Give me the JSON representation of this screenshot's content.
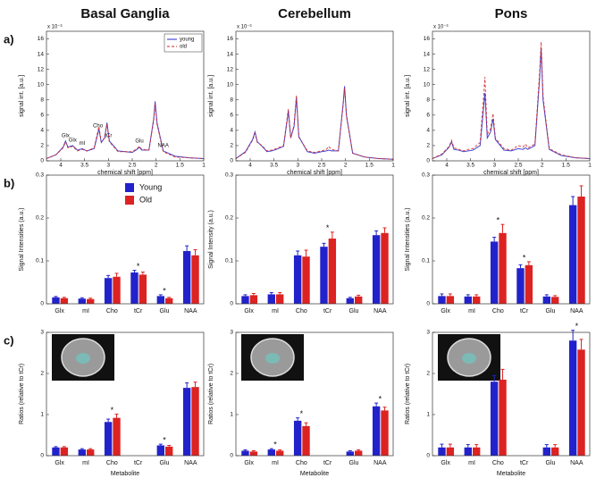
{
  "chart_data": [
    {
      "type": "line",
      "title": "Basal Ganglia",
      "panel_label": "a)",
      "xlabel": "chemical shift [ppm]",
      "ylabel": "signal int. [a.u.]",
      "exponent_label": "x 10⁻³",
      "x": [
        4.3,
        4.1,
        3.95,
        3.9,
        3.85,
        3.75,
        3.65,
        3.55,
        3.45,
        3.3,
        3.22,
        3.2,
        3.15,
        3.08,
        3.03,
        2.98,
        2.8,
        2.65,
        2.5,
        2.4,
        2.35,
        2.3,
        2.15,
        2.05,
        2.02,
        1.98,
        1.85,
        1.6,
        1.3,
        1.0
      ],
      "series": [
        {
          "name": "young",
          "color": "#2424c8",
          "dash": false,
          "values": [
            0.3,
            0.8,
            1.8,
            2.6,
            1.8,
            2.0,
            1.4,
            1.6,
            1.3,
            1.6,
            3.6,
            4.2,
            2.4,
            3.0,
            5.0,
            2.6,
            1.3,
            1.2,
            1.1,
            1.5,
            1.8,
            1.4,
            1.4,
            5.5,
            7.8,
            5.0,
            1.3,
            0.6,
            0.4,
            0.3
          ]
        },
        {
          "name": "old",
          "color": "#d42424",
          "dash": true,
          "values": [
            0.3,
            0.8,
            1.7,
            2.5,
            1.7,
            1.9,
            1.3,
            1.5,
            1.3,
            1.7,
            3.9,
            4.5,
            2.5,
            3.0,
            4.8,
            2.5,
            1.2,
            1.2,
            1.2,
            1.6,
            1.9,
            1.5,
            1.4,
            5.3,
            7.5,
            4.8,
            1.2,
            0.5,
            0.4,
            0.3
          ]
        }
      ],
      "xlim": [
        4.3,
        1
      ],
      "xticks": [
        4,
        3.5,
        3,
        2.5,
        2,
        1.5,
        1
      ],
      "ylim": [
        0,
        17
      ],
      "yticks": [
        0,
        2,
        4,
        6,
        8,
        10,
        12,
        14,
        16
      ],
      "legend": "upper right",
      "annotations": [
        {
          "text": "Glx",
          "x": 3.9
        },
        {
          "text": "Glx",
          "x": 3.75
        },
        {
          "text": "mI",
          "x": 3.55
        },
        {
          "text": "Cho",
          "x": 3.22
        },
        {
          "text": "tCr",
          "x": 3.0
        },
        {
          "text": "Glu",
          "x": 2.35
        },
        {
          "text": "NAA",
          "x": 1.85
        }
      ]
    },
    {
      "type": "line",
      "title": "Cerebellum",
      "xlabel": "chemical shift [ppm]",
      "ylabel": "signal int. [a.u.]",
      "exponent_label": "x 10⁻³",
      "x": [
        4.3,
        4.1,
        3.95,
        3.9,
        3.85,
        3.75,
        3.65,
        3.55,
        3.45,
        3.3,
        3.22,
        3.2,
        3.15,
        3.08,
        3.03,
        2.98,
        2.8,
        2.65,
        2.5,
        2.4,
        2.35,
        2.3,
        2.15,
        2.05,
        2.02,
        1.98,
        1.85,
        1.6,
        1.3,
        1.0
      ],
      "series": [
        {
          "name": "young",
          "color": "#2424c8",
          "dash": false,
          "values": [
            0.3,
            1.2,
            2.8,
            3.8,
            2.5,
            1.9,
            1.2,
            1.3,
            1.5,
            1.9,
            5.5,
            6.6,
            3.0,
            4.5,
            8.3,
            3.2,
            1.2,
            1.0,
            1.2,
            1.3,
            1.4,
            1.3,
            1.3,
            7.5,
            9.8,
            6.0,
            1.0,
            0.5,
            0.3,
            0.2
          ]
        },
        {
          "name": "old",
          "color": "#d42424",
          "dash": true,
          "values": [
            0.3,
            1.1,
            2.7,
            3.6,
            2.4,
            2.0,
            1.3,
            1.4,
            1.6,
            2.0,
            5.8,
            6.8,
            3.0,
            4.7,
            8.6,
            3.1,
            1.3,
            1.1,
            1.3,
            1.5,
            1.9,
            1.5,
            1.3,
            7.3,
            9.5,
            5.8,
            1.0,
            0.5,
            0.3,
            0.2
          ]
        }
      ],
      "xlim": [
        4.3,
        1
      ],
      "xticks": [
        4,
        3.5,
        3,
        2.5,
        2,
        1.5,
        1
      ],
      "ylim": [
        0,
        17
      ],
      "yticks": [
        0,
        2,
        4,
        6,
        8,
        10,
        12,
        14,
        16
      ]
    },
    {
      "type": "line",
      "title": "Pons",
      "xlabel": "chemical shift [ppm]",
      "ylabel": "signal int. [a.u.]",
      "exponent_label": "x 10⁻³",
      "x": [
        4.3,
        4.1,
        3.95,
        3.9,
        3.85,
        3.75,
        3.65,
        3.55,
        3.45,
        3.3,
        3.22,
        3.2,
        3.15,
        3.08,
        3.03,
        2.98,
        2.8,
        2.65,
        2.5,
        2.4,
        2.35,
        2.3,
        2.15,
        2.05,
        2.02,
        1.98,
        1.85,
        1.6,
        1.3,
        1.0
      ],
      "series": [
        {
          "name": "young",
          "color": "#2424c8",
          "dash": false,
          "values": [
            0.3,
            0.8,
            1.8,
            2.5,
            1.5,
            1.4,
            1.2,
            1.3,
            1.4,
            2.0,
            7.5,
            8.9,
            3.0,
            3.8,
            5.5,
            2.8,
            1.4,
            1.3,
            1.6,
            1.5,
            1.7,
            1.5,
            2.0,
            11.0,
            14.8,
            8.0,
            1.5,
            0.7,
            0.4,
            0.3
          ]
        },
        {
          "name": "old",
          "color": "#d42424",
          "dash": true,
          "values": [
            0.3,
            0.9,
            1.9,
            2.7,
            1.7,
            1.5,
            1.3,
            1.5,
            1.6,
            2.4,
            9.0,
            11.0,
            3.5,
            4.2,
            6.2,
            3.0,
            1.6,
            1.4,
            2.0,
            1.8,
            2.2,
            1.7,
            2.2,
            11.8,
            15.6,
            8.5,
            1.6,
            0.8,
            0.4,
            0.3
          ]
        }
      ],
      "xlim": [
        4.3,
        1
      ],
      "xticks": [
        4,
        3.5,
        3,
        2.5,
        2,
        1.5,
        1
      ],
      "ylim": [
        0,
        17
      ],
      "yticks": [
        0,
        2,
        4,
        6,
        8,
        10,
        12,
        14,
        16
      ]
    },
    {
      "type": "bar",
      "panel_label": "b)",
      "ylabel": "Signal Intensities (a.u.)",
      "categories": [
        "Glx",
        "mI",
        "Cho",
        "tCr",
        "Glu",
        "NAA"
      ],
      "series": [
        {
          "name": "Young",
          "color": "#2222cc",
          "values": [
            0.015,
            0.012,
            0.06,
            0.073,
            0.018,
            0.123
          ],
          "errors": [
            0.002,
            0.002,
            0.006,
            0.005,
            0.003,
            0.012
          ]
        },
        {
          "name": "Old",
          "color": "#dd2222",
          "values": [
            0.013,
            0.011,
            0.063,
            0.068,
            0.013,
            0.113
          ],
          "errors": [
            0.002,
            0.002,
            0.008,
            0.006,
            0.002,
            0.013
          ]
        }
      ],
      "ylim": [
        0,
        0.3
      ],
      "yticks": [
        0,
        0.1,
        0.2,
        0.3
      ],
      "legend": "upper center",
      "annotations": [
        {
          "text": "*",
          "category": "tCr"
        },
        {
          "text": "*",
          "category": "Glu"
        }
      ]
    },
    {
      "type": "bar",
      "ylabel": "Signal Intensity (a.u.)",
      "categories": [
        "Glx",
        "mI",
        "Cho",
        "tCr",
        "Glu",
        "NAA"
      ],
      "series": [
        {
          "name": "Young",
          "color": "#2222cc",
          "values": [
            0.018,
            0.022,
            0.113,
            0.133,
            0.013,
            0.16
          ],
          "errors": [
            0.003,
            0.004,
            0.01,
            0.008,
            0.002,
            0.01
          ]
        },
        {
          "name": "Old",
          "color": "#dd2222",
          "values": [
            0.02,
            0.022,
            0.11,
            0.152,
            0.017,
            0.165
          ],
          "errors": [
            0.004,
            0.004,
            0.015,
            0.015,
            0.003,
            0.012
          ]
        }
      ],
      "ylim": [
        0,
        0.3
      ],
      "yticks": [
        0,
        0.1,
        0.2,
        0.3
      ],
      "annotations": [
        {
          "text": "*",
          "category": "tCr"
        }
      ]
    },
    {
      "type": "bar",
      "ylabel": "Signal Intensities (a.u.)",
      "categories": [
        "Glx",
        "mI",
        "Cho",
        "tCr",
        "Glu",
        "NAA"
      ],
      "series": [
        {
          "name": "Young",
          "color": "#2222cc",
          "values": [
            0.018,
            0.017,
            0.145,
            0.083,
            0.017,
            0.23
          ],
          "errors": [
            0.005,
            0.004,
            0.01,
            0.008,
            0.004,
            0.02
          ]
        },
        {
          "name": "Old",
          "color": "#dd2222",
          "values": [
            0.018,
            0.017,
            0.165,
            0.09,
            0.016,
            0.25
          ],
          "errors": [
            0.005,
            0.004,
            0.02,
            0.008,
            0.003,
            0.025
          ]
        }
      ],
      "ylim": [
        0,
        0.3
      ],
      "yticks": [
        0,
        0.1,
        0.2,
        0.3
      ],
      "annotations": [
        {
          "text": "*",
          "category": "Cho"
        },
        {
          "text": "*",
          "category": "tCr"
        }
      ]
    },
    {
      "type": "bar",
      "panel_label": "c)",
      "xlabel": "Metabolite",
      "ylabel": "Ratios (relative to tCr)",
      "categories": [
        "Glx",
        "mI",
        "Cho",
        "tCr",
        "Glu",
        "NAA"
      ],
      "series": [
        {
          "name": "Young",
          "color": "#2222cc",
          "values": [
            0.2,
            0.15,
            0.82,
            null,
            0.25,
            1.65
          ],
          "errors": [
            0.02,
            0.02,
            0.07,
            null,
            0.03,
            0.12
          ]
        },
        {
          "name": "Old",
          "color": "#dd2222",
          "values": [
            0.2,
            0.15,
            0.92,
            null,
            0.22,
            1.67
          ],
          "errors": [
            0.02,
            0.02,
            0.09,
            null,
            0.03,
            0.12
          ]
        }
      ],
      "ylim": [
        0,
        3
      ],
      "yticks": [
        0,
        1,
        2,
        3
      ],
      "annotations": [
        {
          "text": "*",
          "category": "Cho"
        },
        {
          "text": "*",
          "category": "Glu"
        }
      ]
    },
    {
      "type": "bar",
      "xlabel": "Metabolite",
      "ylabel": "Ratios (relative to tCr)",
      "categories": [
        "Glx",
        "mI",
        "Cho",
        "tCr",
        "Glu",
        "NAA"
      ],
      "series": [
        {
          "name": "Young",
          "color": "#2222cc",
          "values": [
            0.12,
            0.15,
            0.85,
            null,
            0.1,
            1.2
          ],
          "errors": [
            0.02,
            0.02,
            0.07,
            null,
            0.02,
            0.08
          ]
        },
        {
          "name": "Old",
          "color": "#dd2222",
          "values": [
            0.1,
            0.12,
            0.72,
            null,
            0.12,
            1.1
          ],
          "errors": [
            0.02,
            0.02,
            0.08,
            null,
            0.02,
            0.08
          ]
        }
      ],
      "ylim": [
        0,
        3
      ],
      "yticks": [
        0,
        1,
        2,
        3
      ],
      "annotations": [
        {
          "text": "*",
          "category": "mI"
        },
        {
          "text": "*",
          "category": "Cho"
        },
        {
          "text": "*",
          "category": "NAA"
        }
      ]
    },
    {
      "type": "bar",
      "xlabel": "Metabolite",
      "ylabel": "Ratios (relative to tCr)",
      "categories": [
        "Glx",
        "mI",
        "Cho",
        "tCr",
        "Glu",
        "NAA"
      ],
      "series": [
        {
          "name": "Young",
          "color": "#2222cc",
          "values": [
            0.2,
            0.2,
            1.8,
            null,
            0.2,
            2.8
          ],
          "errors": [
            0.08,
            0.07,
            0.15,
            null,
            0.07,
            0.25
          ]
        },
        {
          "name": "Old",
          "color": "#dd2222",
          "values": [
            0.2,
            0.2,
            1.85,
            null,
            0.2,
            2.58
          ],
          "errors": [
            0.08,
            0.07,
            0.25,
            null,
            0.07,
            0.25
          ]
        }
      ],
      "ylim": [
        0,
        3
      ],
      "yticks": [
        0,
        1,
        2,
        3
      ],
      "annotations": [
        {
          "text": "*",
          "category": "NAA"
        }
      ]
    }
  ]
}
